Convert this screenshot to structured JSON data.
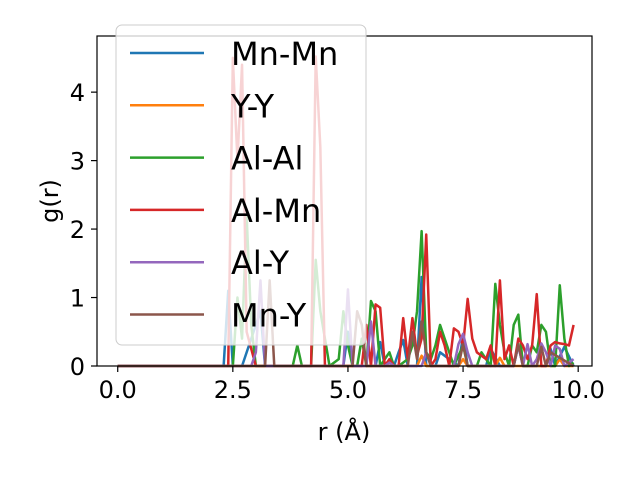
{
  "chart_data": {
    "type": "line",
    "title": "",
    "xlabel": "r (Å)",
    "ylabel": "g(r)",
    "xlim": [
      -0.45,
      10.3
    ],
    "ylim": [
      0,
      4.82
    ],
    "xticks": [
      0.0,
      2.5,
      5.0,
      7.5,
      10.0
    ],
    "xtick_labels": [
      "0.0",
      "2.5",
      "5.0",
      "7.5",
      "10.0"
    ],
    "yticks": [
      0,
      1,
      2,
      3,
      4
    ],
    "ytick_labels": [
      "0",
      "1",
      "2",
      "3",
      "4"
    ],
    "grid": false,
    "legend_position": "top-left",
    "series": [
      {
        "name": "Mn-Mn",
        "color": "#1f77b4",
        "x": [
          0,
          2.3,
          2.4,
          2.5,
          2.6,
          2.7,
          3.1,
          3.2,
          4.4,
          4.9,
          5.0,
          5.1,
          5.2,
          5.6,
          5.7,
          5.8,
          6.0,
          6.1,
          6.2,
          6.3,
          6.5,
          6.6,
          6.7,
          6.9,
          7.0,
          7.4,
          7.5,
          7.6,
          7.7,
          8.0,
          8.1,
          8.3,
          8.6,
          8.7,
          8.8,
          9.3,
          9.4,
          9.5,
          9.7,
          9.9
        ],
        "y": [
          0,
          0,
          1.1,
          0,
          0,
          0,
          0.8,
          0,
          0,
          0,
          0.5,
          0,
          0,
          0,
          0.35,
          0,
          0,
          0.2,
          0.38,
          0,
          0,
          1.3,
          0,
          0,
          0.2,
          0,
          0.45,
          0,
          0,
          0,
          0.25,
          0,
          0,
          0.3,
          0,
          0,
          0.25,
          0,
          0.28,
          0
        ]
      },
      {
        "name": "Y-Y",
        "color": "#ff7f0e",
        "x": [
          0,
          5.0,
          6.0,
          6.5,
          6.6,
          6.7,
          7.4,
          7.5,
          7.6,
          8.2,
          8.3,
          8.4,
          9.5,
          9.6,
          9.7,
          9.9
        ],
        "y": [
          0,
          0,
          0,
          0,
          0.15,
          0,
          0,
          0.1,
          0,
          0,
          0.12,
          0,
          0,
          0.1,
          0,
          0
        ]
      },
      {
        "name": "Al-Al",
        "color": "#2ca02c",
        "x": [
          0,
          2.5,
          2.6,
          2.7,
          2.8,
          2.9,
          3.0,
          3.8,
          3.9,
          4.0,
          4.2,
          4.3,
          4.4,
          4.6,
          4.8,
          4.9,
          5.0,
          5.1,
          5.2,
          5.3,
          5.4,
          5.5,
          5.6,
          5.7,
          5.9,
          6.0,
          6.1,
          6.3,
          6.4,
          6.5,
          6.6,
          6.7,
          6.8,
          6.9,
          7.0,
          7.2,
          7.3,
          7.5,
          7.6,
          7.8,
          7.9,
          8.0,
          8.1,
          8.2,
          8.3,
          8.4,
          8.5,
          8.6,
          8.7,
          8.8,
          8.9,
          9.0,
          9.1,
          9.2,
          9.3,
          9.4,
          9.5,
          9.6,
          9.7,
          9.8,
          9.9
        ],
        "y": [
          0,
          0,
          1.0,
          0.4,
          2.2,
          0.6,
          0,
          0,
          0.3,
          0,
          0,
          1.55,
          0.8,
          0,
          0.1,
          0.8,
          0.3,
          0,
          0,
          0.4,
          0,
          0.95,
          0.8,
          0,
          0.2,
          0,
          0,
          0.1,
          0.3,
          0.8,
          1.97,
          0.2,
          0.1,
          0.3,
          0.6,
          0.2,
          0,
          0.3,
          0,
          0,
          0.2,
          0.1,
          0,
          1.2,
          0.6,
          0.2,
          0,
          0.6,
          0.75,
          0,
          0,
          0.3,
          0.2,
          0.6,
          0.5,
          0,
          0,
          1.18,
          0.4,
          0,
          0.05
        ]
      },
      {
        "name": "Al-Mn",
        "color": "#d62728",
        "x": [
          0,
          2.4,
          2.5,
          2.6,
          2.7,
          2.8,
          3.0,
          3.2,
          4.2,
          4.3,
          4.4,
          4.5,
          5.0,
          5.3,
          5.4,
          5.5,
          5.6,
          5.7,
          5.8,
          5.9,
          6.0,
          6.1,
          6.2,
          6.3,
          6.4,
          6.5,
          6.6,
          6.7,
          6.8,
          6.9,
          7.0,
          7.1,
          7.2,
          7.3,
          7.4,
          7.5,
          7.6,
          7.7,
          7.8,
          8.0,
          8.1,
          8.2,
          8.3,
          8.4,
          8.5,
          8.6,
          8.7,
          8.8,
          8.9,
          9.0,
          9.1,
          9.2,
          9.3,
          9.4,
          9.5,
          9.6,
          9.7,
          9.8,
          9.9
        ],
        "y": [
          0,
          0,
          4.5,
          3.0,
          4.4,
          0.5,
          0,
          0,
          0,
          4.52,
          3.2,
          0,
          0,
          0,
          0.6,
          0,
          0.9,
          0.85,
          0,
          0.1,
          0,
          0,
          0.7,
          0.1,
          0.7,
          0.15,
          0.4,
          1.92,
          0,
          0.1,
          0.5,
          0.3,
          0,
          0.55,
          0.5,
          0.3,
          0.98,
          0.4,
          0.2,
          0.1,
          0.3,
          0,
          1.25,
          0.1,
          0.3,
          0,
          0.4,
          0.3,
          0.1,
          0.3,
          1.05,
          0,
          0,
          0.3,
          0.35,
          0.33,
          0.32,
          0.3,
          0.6
        ]
      },
      {
        "name": "Al-Y",
        "color": "#9467bd",
        "x": [
          0,
          2.9,
          3.0,
          3.1,
          3.2,
          4.9,
          5.0,
          5.1,
          5.4,
          5.5,
          5.6,
          5.8,
          5.9,
          6.0,
          6.6,
          6.7,
          6.8,
          7.3,
          7.4,
          7.5,
          7.6,
          7.7,
          8.6,
          8.7,
          8.8,
          8.9,
          9.0,
          9.1,
          9.2,
          9.3,
          9.4,
          9.5,
          9.6,
          9.7,
          9.9
        ],
        "y": [
          0,
          0,
          0.2,
          1.25,
          0,
          0,
          1.12,
          0,
          0,
          0.65,
          0,
          0,
          0.05,
          0,
          0,
          0.2,
          0,
          0,
          0.32,
          0.47,
          0.2,
          0,
          0,
          0.3,
          0,
          0.32,
          0,
          0.1,
          0.33,
          0.2,
          0,
          0.3,
          0.25,
          0,
          0.1
        ]
      },
      {
        "name": "Mn-Y",
        "color": "#8c564b",
        "x": [
          0,
          3.2,
          3.3,
          3.4,
          5.1,
          5.2,
          5.3,
          5.4,
          6.3,
          6.4,
          6.5,
          6.6,
          6.7,
          6.8,
          7.4,
          7.5,
          7.6,
          8.6,
          8.7,
          8.8,
          9.1,
          9.2,
          9.3,
          9.4,
          9.9
        ],
        "y": [
          0,
          0,
          1.25,
          0,
          0,
          0.8,
          0.6,
          0,
          0,
          0.5,
          0.1,
          0.65,
          0.2,
          0,
          0,
          0.32,
          0,
          0,
          0.32,
          0,
          0,
          0.28,
          0,
          0.2,
          0
        ]
      }
    ]
  }
}
